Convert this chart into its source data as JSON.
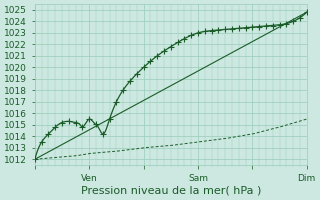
{
  "title": "Pression niveau de la mer( hPa )",
  "ylim": [
    1011.5,
    1025.5
  ],
  "yticks": [
    1012,
    1013,
    1014,
    1015,
    1016,
    1017,
    1018,
    1019,
    1020,
    1021,
    1022,
    1023,
    1024,
    1025
  ],
  "bg_color": "#cce8e0",
  "grid_color": "#99ccbb",
  "line_color": "#1a5c28",
  "xtick_labels": [
    "",
    "Ven",
    "",
    "Sam",
    "",
    "Dim"
  ],
  "xtick_positions": [
    0,
    48,
    96,
    144,
    192,
    240
  ],
  "xlim": [
    0,
    240
  ],
  "marker_every": 6,
  "marker_size": 2.2,
  "fontsize_tick": 6.5,
  "fontsize_xlabel": 8,
  "forecast_x": [
    0,
    6,
    12,
    18,
    24,
    30,
    36,
    40,
    42,
    44,
    46,
    48,
    52,
    56,
    60,
    66,
    72,
    84,
    96,
    108,
    120,
    132,
    144,
    156,
    168,
    180,
    192,
    204,
    216,
    228,
    240
  ],
  "forecast_y": [
    1012.0,
    1013.5,
    1014.2,
    1014.8,
    1015.2,
    1015.3,
    1015.2,
    1015.0,
    1014.8,
    1015.0,
    1015.3,
    1015.5,
    1015.2,
    1014.8,
    1014.2,
    1015.5,
    1017.0,
    1018.8,
    1020.0,
    1021.0,
    1021.8,
    1022.5,
    1023.0,
    1023.2,
    1023.3,
    1023.4,
    1023.5,
    1023.6,
    1023.7,
    1024.0,
    1024.8
  ],
  "dashed_x": [
    0,
    12,
    24,
    36,
    48,
    60,
    72,
    96,
    120,
    144,
    168,
    192,
    216,
    240
  ],
  "dashed_y": [
    1012.0,
    1012.1,
    1012.2,
    1012.3,
    1012.5,
    1012.6,
    1012.7,
    1013.0,
    1013.2,
    1013.5,
    1013.8,
    1014.2,
    1014.8,
    1015.5
  ],
  "trend_y0": 1012.0,
  "trend_y1": 1024.8
}
